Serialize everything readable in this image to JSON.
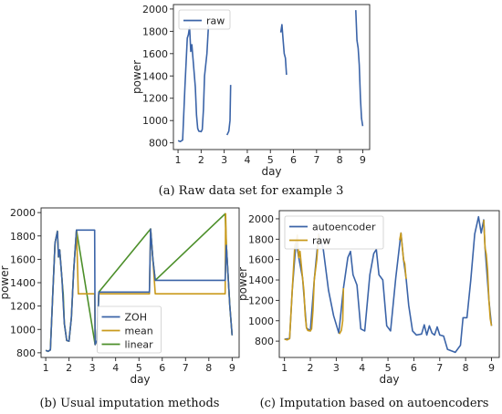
{
  "captions": {
    "a": "(a) Raw data set for example 3",
    "b": "(b) Usual imputation methods",
    "c": "(c) Imputation based on autoencoders"
  },
  "chart_data": [
    {
      "id": "a",
      "type": "line",
      "xlabel": "day",
      "ylabel": "power",
      "xlim": [
        0.8,
        9.3
      ],
      "ylim": [
        740,
        2040
      ],
      "xticks": [
        1,
        2,
        3,
        4,
        5,
        6,
        7,
        8,
        9
      ],
      "yticks": [
        800,
        1000,
        1200,
        1400,
        1600,
        1800,
        2000
      ],
      "legend": "top-left",
      "series": [
        {
          "name": "raw",
          "color": "#3b64a8",
          "segments": [
            [
              [
                1.0,
                820
              ],
              [
                1.1,
                812
              ],
              [
                1.2,
                825
              ],
              [
                1.3,
                1300
              ],
              [
                1.4,
                1740
              ],
              [
                1.45,
                1770
              ],
              [
                1.5,
                1840
              ],
              [
                1.55,
                1620
              ],
              [
                1.6,
                1680
              ],
              [
                1.65,
                1550
              ],
              [
                1.7,
                1420
              ],
              [
                1.75,
                1300
              ],
              [
                1.8,
                1050
              ],
              [
                1.85,
                930
              ],
              [
                1.9,
                905
              ],
              [
                2.0,
                900
              ],
              [
                2.05,
                920
              ],
              [
                2.1,
                1100
              ],
              [
                2.15,
                1400
              ],
              [
                2.25,
                1600
              ],
              [
                2.32,
                1850
              ]
            ],
            [
              [
                3.12,
                870
              ],
              [
                3.2,
                905
              ],
              [
                3.25,
                1000
              ],
              [
                3.28,
                1320
              ]
            ],
            [
              [
                5.45,
                1790
              ],
              [
                5.5,
                1860
              ],
              [
                5.55,
                1730
              ],
              [
                5.6,
                1600
              ],
              [
                5.65,
                1560
              ],
              [
                5.7,
                1410
              ]
            ],
            [
              [
                8.7,
                1990
              ],
              [
                8.75,
                1720
              ],
              [
                8.8,
                1650
              ],
              [
                8.85,
                1500
              ],
              [
                8.9,
                1200
              ],
              [
                8.95,
                1020
              ],
              [
                9.0,
                950
              ]
            ]
          ]
        }
      ]
    },
    {
      "id": "b",
      "type": "line",
      "xlabel": "day",
      "ylabel": "power",
      "xlim": [
        0.8,
        9.3
      ],
      "ylim": [
        760,
        2040
      ],
      "xticks": [
        1,
        2,
        3,
        4,
        5,
        6,
        7,
        8,
        9
      ],
      "yticks": [
        800,
        1000,
        1200,
        1400,
        1600,
        1800,
        2000
      ],
      "legend": "bottom-center",
      "series": [
        {
          "name": "ZOH",
          "color": "#3b64a8",
          "segments": [
            [
              [
                1.0,
                820
              ],
              [
                1.1,
                812
              ],
              [
                1.2,
                825
              ],
              [
                1.3,
                1300
              ],
              [
                1.4,
                1740
              ],
              [
                1.5,
                1840
              ],
              [
                1.55,
                1620
              ],
              [
                1.6,
                1680
              ],
              [
                1.7,
                1420
              ],
              [
                1.8,
                1050
              ],
              [
                1.9,
                905
              ],
              [
                2.0,
                900
              ],
              [
                2.1,
                1100
              ],
              [
                2.2,
                1500
              ],
              [
                2.32,
                1850
              ],
              [
                3.1,
                1850
              ],
              [
                3.12,
                870
              ],
              [
                3.2,
                905
              ],
              [
                3.28,
                1320
              ],
              [
                5.45,
                1320
              ],
              [
                5.5,
                1860
              ],
              [
                5.6,
                1600
              ],
              [
                5.7,
                1420
              ],
              [
                8.7,
                1420
              ],
              [
                8.75,
                1720
              ],
              [
                8.9,
                1200
              ],
              [
                9.0,
                950
              ]
            ]
          ]
        },
        {
          "name": "mean",
          "color": "#c99a1c",
          "segments": [
            [
              [
                1.0,
                820
              ],
              [
                1.1,
                812
              ],
              [
                1.2,
                825
              ],
              [
                1.3,
                1300
              ],
              [
                1.4,
                1740
              ],
              [
                1.5,
                1840
              ],
              [
                1.55,
                1620
              ],
              [
                1.6,
                1680
              ],
              [
                1.7,
                1420
              ],
              [
                1.8,
                1050
              ],
              [
                1.9,
                905
              ],
              [
                2.0,
                900
              ],
              [
                2.1,
                1100
              ],
              [
                2.2,
                1500
              ],
              [
                2.32,
                1850
              ],
              [
                2.4,
                1305
              ],
              [
                3.1,
                1305
              ],
              [
                3.12,
                870
              ],
              [
                3.2,
                905
              ],
              [
                3.28,
                1320
              ],
              [
                3.3,
                1305
              ],
              [
                5.45,
                1305
              ],
              [
                5.5,
                1860
              ],
              [
                5.6,
                1600
              ],
              [
                5.7,
                1305
              ],
              [
                8.7,
                1305
              ],
              [
                8.72,
                1990
              ],
              [
                8.75,
                1720
              ],
              [
                8.9,
                1200
              ],
              [
                9.0,
                950
              ]
            ]
          ]
        },
        {
          "name": "linear",
          "color": "#4c8f2a",
          "segments": [
            [
              [
                1.0,
                820
              ],
              [
                1.1,
                812
              ],
              [
                1.2,
                825
              ],
              [
                1.3,
                1300
              ],
              [
                1.4,
                1740
              ],
              [
                1.5,
                1840
              ],
              [
                1.55,
                1620
              ],
              [
                1.6,
                1680
              ],
              [
                1.65,
                1550
              ],
              [
                1.7,
                1420
              ],
              [
                1.75,
                1300
              ],
              [
                1.8,
                1050
              ],
              [
                1.9,
                905
              ],
              [
                2.0,
                900
              ],
              [
                2.1,
                1100
              ],
              [
                2.2,
                1500
              ],
              [
                2.32,
                1850
              ],
              [
                3.12,
                870
              ],
              [
                3.2,
                905
              ],
              [
                3.28,
                1320
              ],
              [
                5.5,
                1860
              ],
              [
                5.6,
                1600
              ],
              [
                5.7,
                1420
              ],
              [
                8.7,
                1990
              ],
              [
                8.75,
                1720
              ],
              [
                8.9,
                1200
              ],
              [
                9.0,
                950
              ]
            ]
          ]
        }
      ]
    },
    {
      "id": "c",
      "type": "line",
      "xlabel": "day",
      "ylabel": "power",
      "xlim": [
        0.8,
        9.3
      ],
      "ylim": [
        640,
        2080
      ],
      "xticks": [
        1,
        2,
        3,
        4,
        5,
        6,
        7,
        8,
        9
      ],
      "yticks": [
        800,
        1000,
        1200,
        1400,
        1600,
        1800,
        2000
      ],
      "legend": "top-left",
      "series": [
        {
          "name": "autoencoder",
          "color": "#3b64a8",
          "segments": [
            [
              [
                1.0,
                820
              ],
              [
                1.2,
                825
              ],
              [
                1.3,
                1300
              ],
              [
                1.45,
                1780
              ],
              [
                1.55,
                1620
              ],
              [
                1.7,
                1420
              ],
              [
                1.85,
                930
              ],
              [
                2.0,
                900
              ],
              [
                2.15,
                1400
              ],
              [
                2.32,
                1850
              ],
              [
                2.5,
                1700
              ],
              [
                2.7,
                1300
              ],
              [
                2.9,
                1050
              ],
              [
                3.1,
                880
              ],
              [
                3.28,
                1320
              ],
              [
                3.45,
                1620
              ],
              [
                3.55,
                1680
              ],
              [
                3.65,
                1450
              ],
              [
                3.8,
                1350
              ],
              [
                3.95,
                920
              ],
              [
                4.1,
                900
              ],
              [
                4.3,
                1450
              ],
              [
                4.45,
                1660
              ],
              [
                4.55,
                1700
              ],
              [
                4.65,
                1450
              ],
              [
                4.8,
                1400
              ],
              [
                4.95,
                950
              ],
              [
                5.1,
                900
              ],
              [
                5.3,
                1420
              ],
              [
                5.5,
                1860
              ],
              [
                5.6,
                1600
              ],
              [
                5.7,
                1420
              ],
              [
                5.8,
                1150
              ],
              [
                5.95,
                900
              ],
              [
                6.1,
                860
              ],
              [
                6.3,
                870
              ],
              [
                6.4,
                960
              ],
              [
                6.5,
                860
              ],
              [
                6.6,
                950
              ],
              [
                6.7,
                880
              ],
              [
                6.8,
                860
              ],
              [
                6.9,
                940
              ],
              [
                7.0,
                860
              ],
              [
                7.15,
                850
              ],
              [
                7.3,
                720
              ],
              [
                7.6,
                690
              ],
              [
                7.8,
                760
              ],
              [
                7.9,
                1030
              ],
              [
                8.05,
                1030
              ],
              [
                8.2,
                1400
              ],
              [
                8.35,
                1850
              ],
              [
                8.5,
                2020
              ],
              [
                8.6,
                1860
              ],
              [
                8.7,
                1990
              ],
              [
                8.75,
                1720
              ],
              [
                8.9,
                1200
              ],
              [
                9.0,
                950
              ]
            ]
          ]
        },
        {
          "name": "raw",
          "color": "#c99a1c",
          "segments": [
            [
              [
                1.0,
                820
              ],
              [
                1.1,
                812
              ],
              [
                1.2,
                825
              ],
              [
                1.3,
                1300
              ],
              [
                1.4,
                1740
              ],
              [
                1.45,
                1770
              ],
              [
                1.5,
                1840
              ],
              [
                1.55,
                1620
              ],
              [
                1.6,
                1680
              ],
              [
                1.65,
                1550
              ],
              [
                1.7,
                1420
              ],
              [
                1.75,
                1300
              ],
              [
                1.8,
                1050
              ],
              [
                1.85,
                930
              ],
              [
                1.9,
                905
              ],
              [
                2.0,
                900
              ],
              [
                2.05,
                920
              ],
              [
                2.1,
                1100
              ],
              [
                2.15,
                1400
              ],
              [
                2.25,
                1600
              ],
              [
                2.32,
                1850
              ]
            ],
            [
              [
                3.12,
                870
              ],
              [
                3.2,
                905
              ],
              [
                3.25,
                1000
              ],
              [
                3.28,
                1320
              ]
            ],
            [
              [
                5.45,
                1790
              ],
              [
                5.5,
                1860
              ],
              [
                5.55,
                1730
              ],
              [
                5.6,
                1600
              ],
              [
                5.65,
                1560
              ],
              [
                5.7,
                1410
              ]
            ],
            [
              [
                8.7,
                1990
              ],
              [
                8.75,
                1720
              ],
              [
                8.8,
                1650
              ],
              [
                8.85,
                1500
              ],
              [
                8.9,
                1200
              ],
              [
                8.95,
                1020
              ],
              [
                9.0,
                950
              ]
            ]
          ]
        }
      ]
    }
  ]
}
